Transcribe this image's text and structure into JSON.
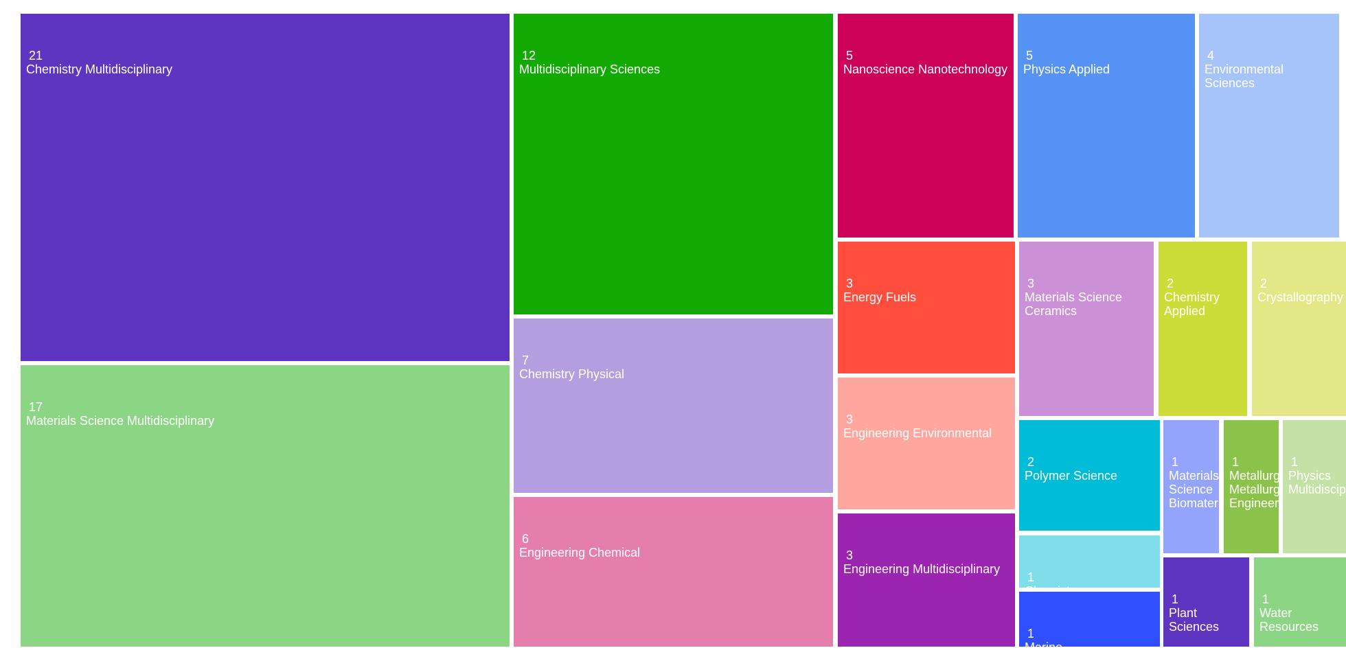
{
  "chart_data": {
    "type": "treemap",
    "items": [
      {
        "label": "Chemistry Multidisciplinary",
        "value": 21,
        "color": "#5e35c1"
      },
      {
        "label": "Materials Science Multidisciplinary",
        "value": 17,
        "color": "#8bd585"
      },
      {
        "label": "Multidisciplinary Sciences",
        "value": 12,
        "color": "#14aa05"
      },
      {
        "label": "Chemistry Physical",
        "value": 7,
        "color": "#b39ee0"
      },
      {
        "label": "Engineering Chemical",
        "value": 6,
        "color": "#e57ead"
      },
      {
        "label": "Nanoscience Nanotechnology",
        "value": 5,
        "color": "#cc0258"
      },
      {
        "label": "Physics Applied",
        "value": 5,
        "color": "#5793f5"
      },
      {
        "label": "Environmental Sciences",
        "value": 4,
        "color": "#a6c4f9"
      },
      {
        "label": "Energy Fuels",
        "value": 3,
        "color": "#ff4e3e"
      },
      {
        "label": "Engineering Environmental",
        "value": 3,
        "color": "#ffa69e"
      },
      {
        "label": "Engineering Multidisciplinary",
        "value": 3,
        "color": "#9b24b0"
      },
      {
        "label": "Materials Science Ceramics",
        "value": 3,
        "color": "#cb90d6"
      },
      {
        "label": "Chemistry Applied",
        "value": 2,
        "color": "#ccdc38"
      },
      {
        "label": "Crystallography",
        "value": 2,
        "color": "#e1e885"
      },
      {
        "label": "Polymer Science",
        "value": 2,
        "color": "#00bcd6"
      },
      {
        "label": "Chemistry",
        "value": 1,
        "color": "#80deea"
      },
      {
        "label": "Marine",
        "value": 1,
        "color": "#304ffe"
      },
      {
        "label": "Materials Science Biomaterials",
        "value": 1,
        "color": "#94a4fc"
      },
      {
        "label": "Metallurgy Metallurgical Engineering",
        "value": 1,
        "color": "#8bc34a"
      },
      {
        "label": "Physics Multidisciplinary",
        "value": 1,
        "color": "#c5e1a5"
      },
      {
        "label": "Plant Sciences",
        "value": 1,
        "color": "#5e35c1"
      },
      {
        "label": "Water Resources",
        "value": 1,
        "color": "#8bd585"
      }
    ]
  }
}
